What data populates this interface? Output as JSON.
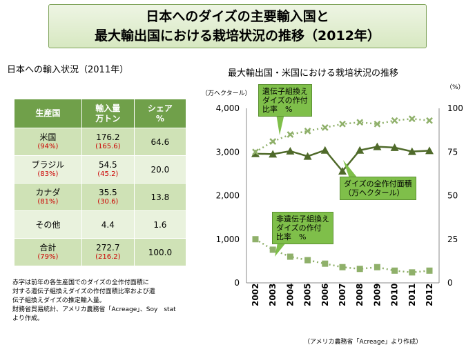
{
  "title": {
    "line1": "日本へのダイズの主要輸入国と",
    "line2": "最大輸出国における栽培状況の推移（2012年）"
  },
  "left_section_title": "日本への輸入状況（2011年）",
  "right_section_title": "最大輸出国・米国における栽培状況の推移",
  "table": {
    "headers": [
      [
        "生産国",
        ""
      ],
      [
        "輸入量",
        "万トン"
      ],
      [
        "シェア",
        "%"
      ]
    ],
    "rows": [
      {
        "country": "米国",
        "country_sub": "(94%)",
        "amount": "176.2",
        "amount_sub": "(165.6)",
        "share": "64.6"
      },
      {
        "country": "ブラジル",
        "country_sub": "(83%)",
        "amount": "54.5",
        "amount_sub": "(45.2)",
        "share": "20.0"
      },
      {
        "country": "カナダ",
        "country_sub": "(81%)",
        "amount": "35.5",
        "amount_sub": "(30.6)",
        "share": "13.8"
      },
      {
        "country": "その他",
        "country_sub": "",
        "amount": "4.4",
        "amount_sub": "",
        "share": "1.6"
      },
      {
        "country": "合計",
        "country_sub": "(79%)",
        "amount": "272.7",
        "amount_sub": "(216.2)",
        "share": "100.0"
      }
    ]
  },
  "note": {
    "line1": "赤字は前年の各生産国でのダイズの全作付面積に",
    "line2": "対する遺伝子組換えダイズの作付面積比率および遺",
    "line3": "伝子組換えダイズの推定輸入量。",
    "line4": "財務省貿易統計、アメリカ農務省「Acreage」、Soy　stat",
    "line5": "より作成。"
  },
  "source": "（アメリカ農務省「Acreage」より作成）",
  "callouts": {
    "gm": [
      "遺伝子組換え",
      "ダイズの作付",
      "比率　%"
    ],
    "total": [
      "ダイズの全作付面積",
      "（万ヘクタール）"
    ],
    "nongm": [
      "非遺伝子組換え",
      "ダイズの作付",
      "比率　%"
    ]
  },
  "colors": {
    "header_green": "#70a04a",
    "row_odd": "#cfe2b6",
    "row_even": "#e9f2dd",
    "line": "#4f6a2a",
    "dots": "#8fb06a",
    "callout": "#7fbf4a",
    "red": "#cc0000"
  },
  "chart_data": {
    "type": "line",
    "x": [
      "2002",
      "2003",
      "2004",
      "2005",
      "2006",
      "2007",
      "2008",
      "2009",
      "2010",
      "2011",
      "2012"
    ],
    "left_axis_unit": "（万ヘクタール）",
    "right_axis_unit": "（%）",
    "left_ticks": [
      "0",
      "1,000",
      "2,000",
      "3,000",
      "4,000"
    ],
    "right_ticks": [
      "0",
      "25",
      "50",
      "75",
      "100"
    ],
    "ylim_left": [
      0,
      4000
    ],
    "ylim_right": [
      0,
      100
    ],
    "series": [
      {
        "axis": "left",
        "values": [
          2960,
          2950,
          3020,
          2900,
          3040,
          2560,
          3040,
          3120,
          3100,
          3010,
          3030
        ]
      },
      {
        "axis": "right",
        "values": [
          75,
          81,
          85,
          87,
          89,
          91,
          92,
          91,
          93,
          94,
          93
        ]
      },
      {
        "axis": "right",
        "values": [
          25,
          19,
          15,
          13,
          11,
          9,
          8,
          9,
          7,
          6,
          7
        ]
      }
    ]
  }
}
